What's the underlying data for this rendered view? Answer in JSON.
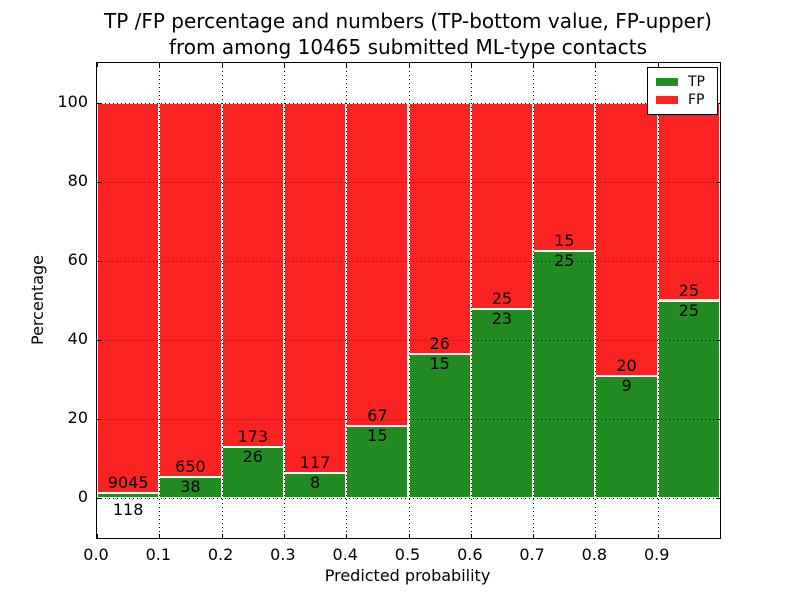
{
  "title": {
    "line1": "TP /FP percentage and numbers (TP-bottom value, FP-upper)",
    "line2": "from among 10465 submitted ML-type contacts"
  },
  "axes": {
    "xlabel": "Predicted probability",
    "ylabel": "Percentage"
  },
  "chart_data": {
    "type": "bar",
    "stacked": true,
    "title": "TP /FP percentage and numbers (TP-bottom value, FP-upper) from among 10465 submitted ML-type contacts",
    "total_contacts": 10465,
    "xlabel": "Predicted probability",
    "ylabel": "Percentage",
    "bin_edges": [
      0.0,
      0.1,
      0.2,
      0.3,
      0.4,
      0.5,
      0.6,
      0.7,
      0.8,
      0.9,
      1.0
    ],
    "xticks": [
      "0.0",
      "0.1",
      "0.2",
      "0.3",
      "0.4",
      "0.5",
      "0.6",
      "0.7",
      "0.8",
      "0.9"
    ],
    "yticks": [
      0,
      20,
      40,
      60,
      80,
      100
    ],
    "xlim": [
      0.0,
      1.0
    ],
    "ylim": [
      -10,
      110
    ],
    "grid": "dotted",
    "bar_edge_color": "#ffffff",
    "series": [
      {
        "name": "TP",
        "color": "#228b22",
        "counts": [
          118,
          38,
          26,
          8,
          15,
          15,
          23,
          25,
          9,
          25
        ]
      },
      {
        "name": "FP",
        "color": "#fb2222",
        "counts": [
          9045,
          650,
          173,
          117,
          67,
          26,
          25,
          15,
          20,
          25
        ]
      }
    ],
    "tp_percent": [
      1.29,
      5.52,
      13.07,
      6.4,
      18.29,
      36.59,
      47.92,
      62.5,
      31.03,
      50.0
    ],
    "legend": {
      "position": "upper right",
      "entries": [
        {
          "label": "TP",
          "color": "#228b22"
        },
        {
          "label": "FP",
          "color": "#fb2222"
        }
      ]
    }
  }
}
